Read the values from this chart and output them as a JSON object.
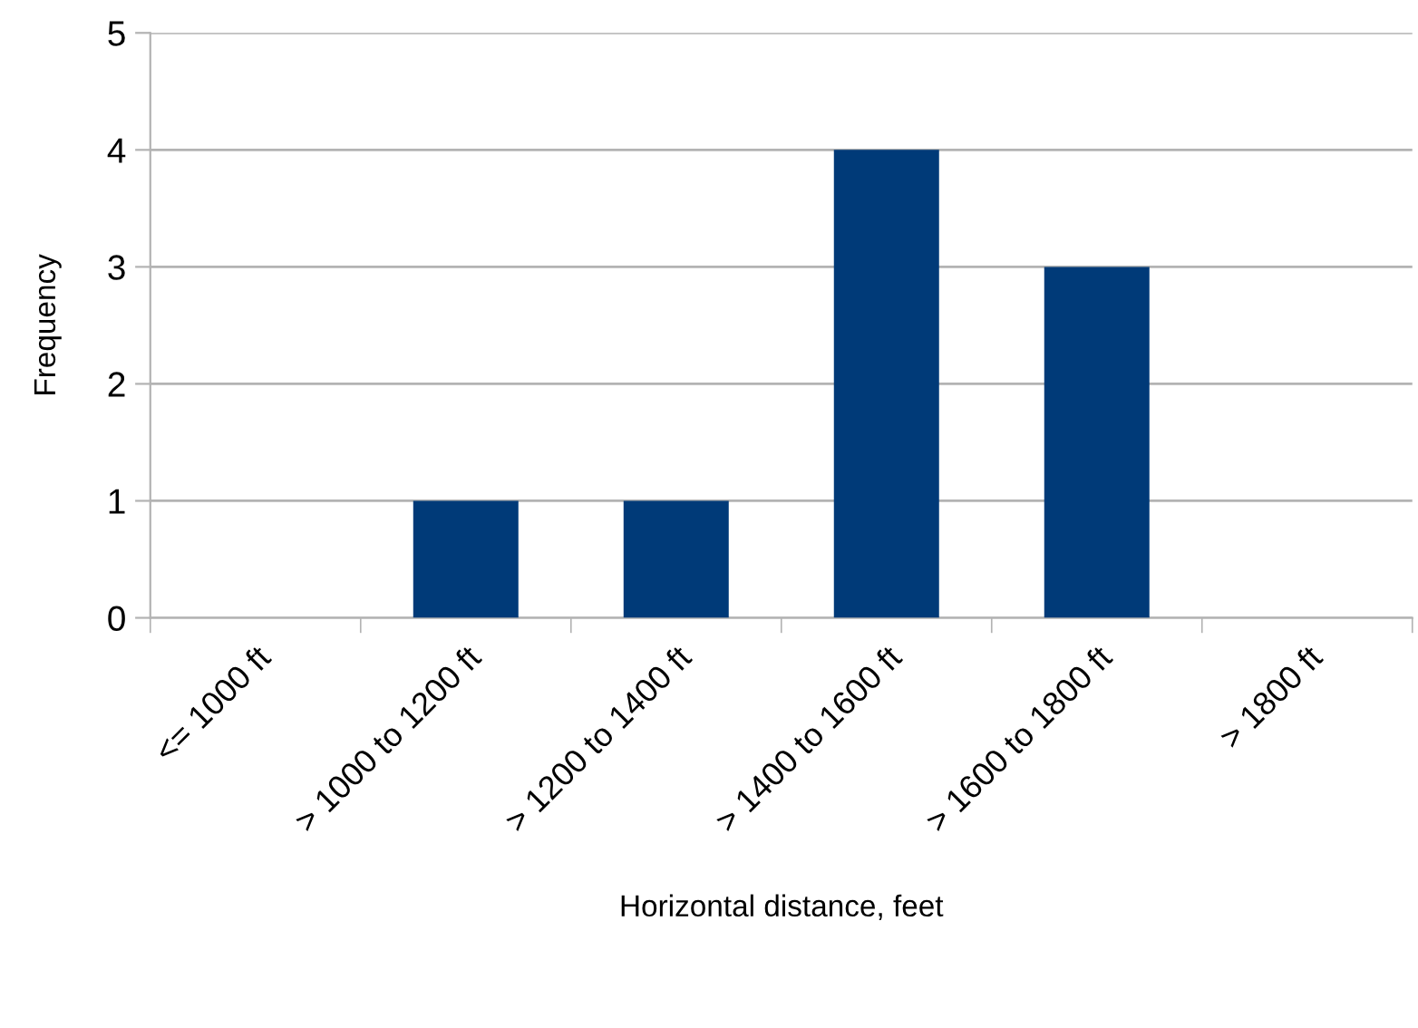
{
  "chart_data": {
    "type": "bar",
    "xlabel": "Horizontal distance, feet",
    "ylabel": "Frequency",
    "categories": [
      "<= 1000 ft",
      "> 1000 to 1200 ft",
      "> 1200 to 1400 ft",
      "> 1400 to 1600 ft",
      "> 1600 to 1800 ft",
      "> 1800 ft"
    ],
    "values": [
      0,
      1,
      1,
      4,
      3,
      0
    ],
    "color": "#003a78",
    "ylim": [
      0,
      5
    ],
    "yticks": [
      0,
      1,
      2,
      3,
      4,
      5
    ],
    "grid": "y",
    "legend": false
  }
}
